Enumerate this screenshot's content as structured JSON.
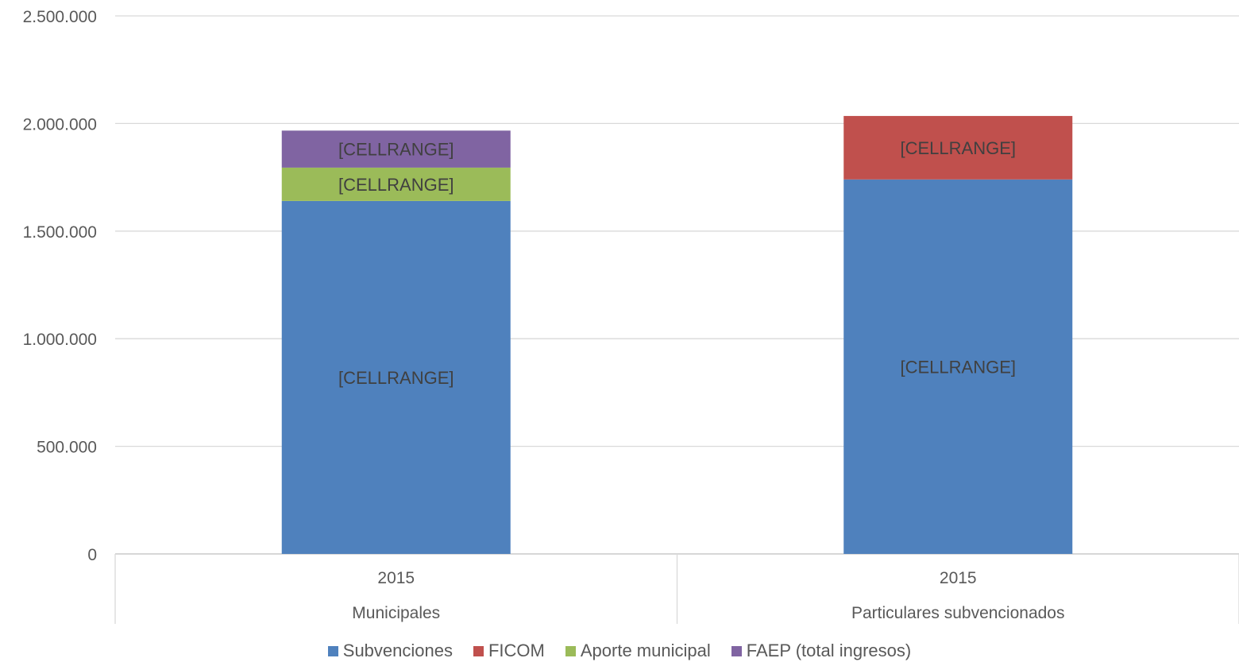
{
  "chart_data": {
    "type": "bar",
    "stacked": true,
    "title": "",
    "xlabel": "",
    "ylabel": "",
    "ylim": [
      0,
      2500000
    ],
    "yticks": [
      0,
      500000,
      1000000,
      1500000,
      2000000,
      2500000
    ],
    "ytick_labels": [
      "0",
      "500.000",
      "1.000.000",
      "1.500.000",
      "2.000.000",
      "2.500.000"
    ],
    "grid": true,
    "legend_position": "bottom",
    "categories": [
      {
        "label": "2015",
        "group": "Municipales"
      },
      {
        "label": "2015",
        "group": "Particulares subvencionados"
      }
    ],
    "series": [
      {
        "name": "Subvenciones",
        "color": "#4f81bd",
        "values": [
          1640000,
          1740000
        ],
        "data_labels": [
          "[CELLRANGE]",
          "[CELLRANGE]"
        ]
      },
      {
        "name": "FICOM",
        "color": "#c0504d",
        "values": [
          0,
          295000
        ],
        "data_labels": [
          "",
          "[CELLRANGE]"
        ]
      },
      {
        "name": "Aporte municipal",
        "color": "#9bbb59",
        "values": [
          155000,
          0
        ],
        "data_labels": [
          "[CELLRANGE]",
          ""
        ]
      },
      {
        "name": "FAEP (total ingresos)",
        "color": "#8064a2",
        "values": [
          172000,
          0
        ],
        "data_labels": [
          "[CELLRANGE]",
          ""
        ]
      }
    ]
  }
}
